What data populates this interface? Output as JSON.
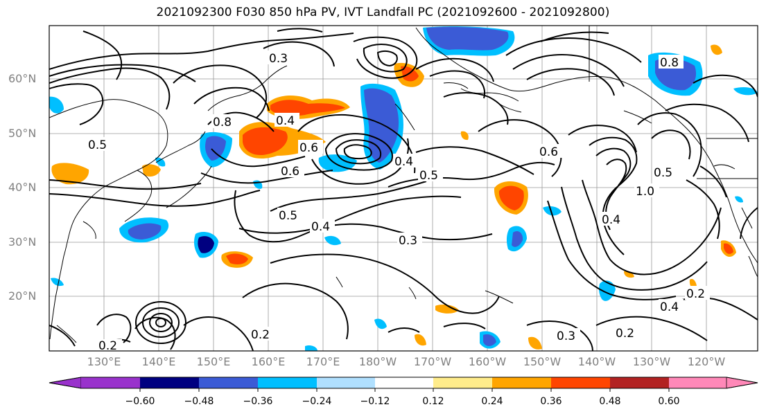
{
  "title": "2021092300 F030 850 hPa PV, IVT Landfall PC (2021092600 - 2021092800)",
  "lat_labels": [
    "60°N",
    "50°N",
    "40°N",
    "30°N",
    "20°N"
  ],
  "lon_labels": [
    "130°E",
    "140°E",
    "150°E",
    "160°E",
    "170°E",
    "180°W",
    "170°W",
    "160°W",
    "150°W",
    "140°W",
    "130°W",
    "120°W"
  ],
  "colorbar": {
    "ticks": [
      "−0.60",
      "−0.48",
      "−0.36",
      "−0.24",
      "−0.12",
      "0.12",
      "0.24",
      "0.36",
      "0.48",
      "0.60"
    ],
    "colors": [
      "#9932cc",
      "#000080",
      "#3b5bd6",
      "#00bfff",
      "#b0e0ff",
      "#ffffff",
      "#ffec8b",
      "#ffa500",
      "#ff4500",
      "#b22222",
      "#ff88b8"
    ],
    "extend": "both"
  },
  "contour_labels": [
    "0.8",
    "0.6",
    "0.5",
    "0.4",
    "0.3",
    "0.2",
    "0.6",
    "0.5",
    "0.4",
    "0.3",
    "0.2",
    "0.6",
    "0.4",
    "0.8",
    "0.5",
    "1.0",
    "0.5",
    "0.4",
    "0.3",
    "0.2",
    "0.2",
    "0.4"
  ]
}
